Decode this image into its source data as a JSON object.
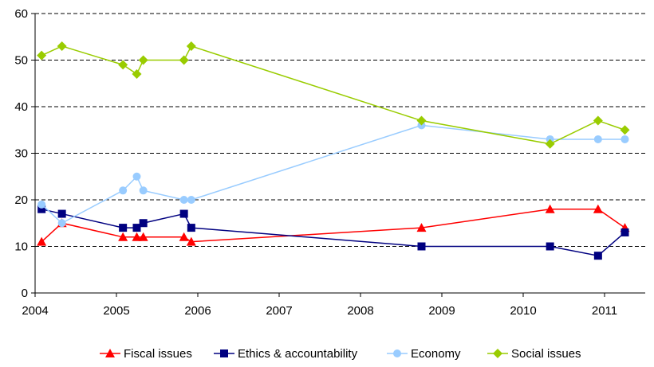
{
  "chart_data": {
    "type": "line",
    "title": "",
    "xlabel": "",
    "ylabel": "",
    "xlim": [
      2004,
      2011.5
    ],
    "ylim": [
      0,
      60
    ],
    "x_ticks": [
      2004,
      2005,
      2006,
      2007,
      2008,
      2009,
      2010,
      2011
    ],
    "y_ticks": [
      0,
      10,
      20,
      30,
      40,
      50,
      60
    ],
    "grid": "horizontal dashed",
    "legend_position": "bottom",
    "series": [
      {
        "name": "Fiscal issues",
        "color": "#ff0000",
        "marker": "triangle",
        "points": [
          [
            2004.08,
            11
          ],
          [
            2004.33,
            15
          ],
          [
            2005.08,
            12
          ],
          [
            2005.25,
            12
          ],
          [
            2005.33,
            12
          ],
          [
            2005.83,
            12
          ],
          [
            2005.92,
            11
          ],
          [
            2008.75,
            14
          ],
          [
            2010.33,
            18
          ],
          [
            2010.92,
            18
          ],
          [
            2011.25,
            14
          ]
        ]
      },
      {
        "name": "Ethics & accountability",
        "color": "#000080",
        "marker": "square",
        "points": [
          [
            2004.08,
            18
          ],
          [
            2004.33,
            17
          ],
          [
            2005.08,
            14
          ],
          [
            2005.25,
            14
          ],
          [
            2005.33,
            15
          ],
          [
            2005.83,
            17
          ],
          [
            2005.92,
            14
          ],
          [
            2008.75,
            10
          ],
          [
            2010.33,
            10
          ],
          [
            2010.92,
            8
          ],
          [
            2011.25,
            13
          ]
        ]
      },
      {
        "name": "Economy",
        "color": "#99ccff",
        "marker": "circle",
        "points": [
          [
            2004.08,
            19
          ],
          [
            2004.33,
            15
          ],
          [
            2005.08,
            22
          ],
          [
            2005.25,
            25
          ],
          [
            2005.33,
            22
          ],
          [
            2005.83,
            20
          ],
          [
            2005.92,
            20
          ],
          [
            2008.75,
            36
          ],
          [
            2010.33,
            33
          ],
          [
            2010.92,
            33
          ],
          [
            2011.25,
            33
          ]
        ]
      },
      {
        "name": "Social issues",
        "color": "#99cc00",
        "marker": "diamond",
        "points": [
          [
            2004.08,
            51
          ],
          [
            2004.33,
            53
          ],
          [
            2005.08,
            49
          ],
          [
            2005.25,
            47
          ],
          [
            2005.33,
            50
          ],
          [
            2005.83,
            50
          ],
          [
            2005.92,
            53
          ],
          [
            2008.75,
            37
          ],
          [
            2010.33,
            32
          ],
          [
            2010.92,
            37
          ],
          [
            2011.25,
            35
          ]
        ]
      }
    ]
  }
}
